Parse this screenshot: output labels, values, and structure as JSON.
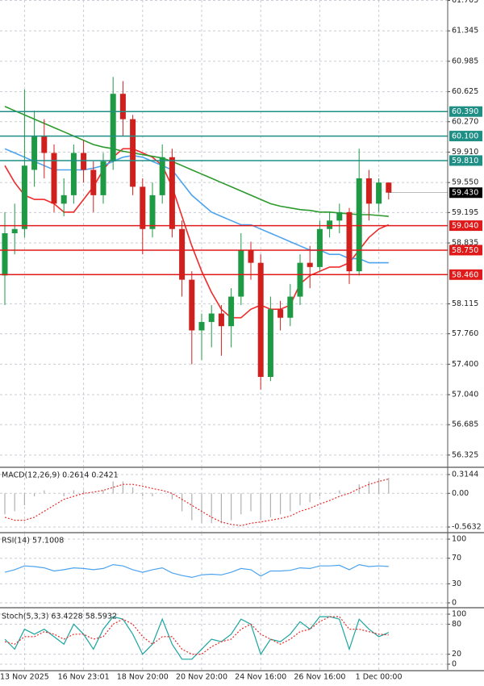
{
  "chart_data": [
    {
      "type": "candlestick",
      "grid": true,
      "categories": [
        null,
        null,
        "13 Nov 2025",
        null,
        null,
        null,
        null,
        null,
        "16 Nov 23:01",
        null,
        null,
        null,
        null,
        null,
        "18 Nov 20:00",
        null,
        null,
        null,
        null,
        null,
        "20 Nov 20:00",
        null,
        null,
        null,
        null,
        null,
        "24 Nov 16:00",
        null,
        null,
        null,
        null,
        null,
        "26 Nov 16:00",
        null,
        null,
        null,
        null,
        null,
        "1 Dec 00:00",
        null
      ],
      "open": [
        58.45,
        58.95,
        59.0,
        59.7,
        60.1,
        59.9,
        59.3,
        59.4,
        59.9,
        59.7,
        59.4,
        59.8,
        60.6,
        60.3,
        59.5,
        59.0,
        59.4,
        59.85,
        59.0,
        58.4,
        57.8,
        57.9,
        58.0,
        57.85,
        58.2,
        58.75,
        58.6,
        57.25,
        58.05,
        57.95,
        58.2,
        58.6,
        58.55,
        59.0,
        59.1,
        59.2,
        58.5,
        59.6,
        59.3,
        59.55
      ],
      "high": [
        59.2,
        59.3,
        60.65,
        60.4,
        60.3,
        60.0,
        59.6,
        60.0,
        60.05,
        59.8,
        59.9,
        60.8,
        60.75,
        60.35,
        59.6,
        59.55,
        60.0,
        59.95,
        59.1,
        58.5,
        58.0,
        58.1,
        58.1,
        58.3,
        58.95,
        58.85,
        58.7,
        58.2,
        58.15,
        58.35,
        58.7,
        58.8,
        59.1,
        59.2,
        59.3,
        59.25,
        59.95,
        59.7,
        59.6,
        59.5
      ],
      "low": [
        58.1,
        58.7,
        58.9,
        59.5,
        59.6,
        59.2,
        59.15,
        59.3,
        59.55,
        59.2,
        59.3,
        59.7,
        60.1,
        59.4,
        58.7,
        58.9,
        59.3,
        58.9,
        58.2,
        57.4,
        57.45,
        57.6,
        57.5,
        57.6,
        58.1,
        58.4,
        57.1,
        57.2,
        57.8,
        57.85,
        58.1,
        58.3,
        58.5,
        58.9,
        58.95,
        58.35,
        58.45,
        59.1,
        59.2,
        59.35
      ],
      "close": [
        58.95,
        59.0,
        59.75,
        60.1,
        59.9,
        59.3,
        59.4,
        59.9,
        59.7,
        59.4,
        59.8,
        60.6,
        60.3,
        59.5,
        59.0,
        59.4,
        59.85,
        59.0,
        58.4,
        57.8,
        57.9,
        58.0,
        57.85,
        58.2,
        58.75,
        58.6,
        57.25,
        58.05,
        57.95,
        58.2,
        58.6,
        58.55,
        59.0,
        59.1,
        59.2,
        58.5,
        59.6,
        59.3,
        59.55,
        59.43
      ],
      "up_color": "#1e9a45",
      "down_color": "#d0201e",
      "overlays": [
        {
          "color": "#ef2b2b",
          "values": [
            59.75,
            59.55,
            59.4,
            59.35,
            59.35,
            59.3,
            59.2,
            59.2,
            59.35,
            59.5,
            59.7,
            59.85,
            59.95,
            59.95,
            59.9,
            59.85,
            59.75,
            59.5,
            59.15,
            58.8,
            58.5,
            58.25,
            58.05,
            57.95,
            57.95,
            58.05,
            58.1,
            58.05,
            58.05,
            58.1,
            58.35,
            58.45,
            58.5,
            58.55,
            58.55,
            58.6,
            58.75,
            58.9,
            59.0,
            59.05
          ]
        },
        {
          "color": "#4da3ee",
          "values": [
            59.95,
            59.9,
            59.85,
            59.8,
            59.75,
            59.7,
            59.7,
            59.7,
            59.7,
            59.72,
            59.75,
            59.8,
            59.85,
            59.87,
            59.85,
            59.8,
            59.75,
            59.7,
            59.55,
            59.4,
            59.3,
            59.2,
            59.15,
            59.1,
            59.05,
            59.05,
            59.0,
            58.95,
            58.9,
            58.85,
            58.8,
            58.75,
            58.75,
            58.7,
            58.7,
            58.65,
            58.65,
            58.6,
            58.6,
            58.6
          ]
        },
        {
          "color": "#2d9a2d",
          "values": [
            60.45,
            60.4,
            60.35,
            60.3,
            60.25,
            60.2,
            60.15,
            60.1,
            60.05,
            60.0,
            59.97,
            59.95,
            59.92,
            59.9,
            59.88,
            59.86,
            59.84,
            59.8,
            59.75,
            59.7,
            59.65,
            59.6,
            59.55,
            59.5,
            59.45,
            59.4,
            59.35,
            59.3,
            59.27,
            59.25,
            59.23,
            59.22,
            59.2,
            59.2,
            59.19,
            59.18,
            59.17,
            59.17,
            59.16,
            59.15
          ]
        }
      ],
      "levels": [
        {
          "value": 60.39,
          "label": "60.390",
          "color": "#1f8f86"
        },
        {
          "value": 60.1,
          "label": "60.100",
          "color": "#1f8f86"
        },
        {
          "value": 59.81,
          "label": "59.810",
          "color": "#1f8f86"
        },
        {
          "value": 59.04,
          "label": "59.040",
          "color": "#e01a1a"
        },
        {
          "value": 58.75,
          "label": "58.750",
          "color": "#e01a1a"
        },
        {
          "value": 58.46,
          "label": "58.460",
          "color": "#e01a1a"
        }
      ],
      "last": {
        "value": 59.43,
        "label": "59.430"
      },
      "ylim": [
        56.19,
        61.71
      ],
      "yticks": [
        61.705,
        61.345,
        60.985,
        60.625,
        {
          "value": 60.27,
          "label": "60.270"
        },
        {
          "value": 59.91,
          "label": "59.910"
        },
        {
          "value": 59.55,
          "label": "59.550"
        },
        59.195,
        58.835,
        58.115,
        {
          "value": 57.76,
          "label": "57.760"
        },
        {
          "value": 57.4,
          "label": "57.400"
        },
        {
          "value": 57.04,
          "label": "57.040"
        },
        56.685,
        56.325
      ]
    },
    {
      "type": "macd",
      "title": "MACD(12,26,9) 0.2614 0.2421",
      "grid": true,
      "series": [
        {
          "type": "bar",
          "color": "#b0b0b0",
          "values": [
            -0.35,
            -0.3,
            -0.2,
            -0.05,
            0.05,
            0.0,
            -0.05,
            0.05,
            0.05,
            0.0,
            0.05,
            0.2,
            0.2,
            0.1,
            -0.05,
            -0.05,
            0.0,
            -0.1,
            -0.3,
            -0.45,
            -0.5,
            -0.5,
            -0.5,
            -0.45,
            -0.35,
            -0.3,
            -0.45,
            -0.4,
            -0.35,
            -0.3,
            -0.2,
            -0.15,
            -0.05,
            0.0,
            0.05,
            0.0,
            0.15,
            0.2,
            0.25,
            0.26
          ]
        },
        {
          "type": "dotted",
          "color": "#e52b2b",
          "values": [
            -0.4,
            -0.45,
            -0.45,
            -0.4,
            -0.3,
            -0.2,
            -0.1,
            -0.05,
            0.0,
            0.02,
            0.05,
            0.1,
            0.15,
            0.15,
            0.12,
            0.08,
            0.05,
            0.0,
            -0.1,
            -0.2,
            -0.3,
            -0.4,
            -0.48,
            -0.52,
            -0.54,
            -0.5,
            -0.48,
            -0.45,
            -0.42,
            -0.38,
            -0.3,
            -0.25,
            -0.18,
            -0.12,
            -0.05,
            0.0,
            0.08,
            0.15,
            0.2,
            0.24
          ]
        }
      ],
      "ylim": [
        -0.644,
        0.422
      ],
      "yticks": [
        0.3144,
        {
          "value": 0,
          "label": "0.00"
        },
        -0.5632
      ]
    },
    {
      "type": "rsi",
      "title": "RSI(14) 57.1008",
      "grid": true,
      "series": [
        {
          "type": "line",
          "color": "#4da3ee",
          "values": [
            48,
            52,
            58,
            57,
            55,
            50,
            52,
            55,
            54,
            52,
            54,
            60,
            58,
            52,
            48,
            52,
            55,
            47,
            43,
            40,
            44,
            45,
            44,
            48,
            54,
            52,
            42,
            50,
            50,
            51,
            55,
            54,
            58,
            58,
            59,
            52,
            60,
            57,
            58,
            57.1
          ]
        }
      ],
      "ylim": [
        -6.3,
        108.9
      ],
      "yticks": [
        100,
        70,
        30,
        0
      ]
    },
    {
      "type": "stochastic",
      "title": "Stoch(5,3,3) 63.4228 58.5932",
      "grid": true,
      "series": [
        {
          "type": "line",
          "color": "#1ba5a0",
          "values": [
            50,
            30,
            70,
            60,
            70,
            55,
            40,
            80,
            60,
            30,
            70,
            95,
            90,
            60,
            20,
            40,
            90,
            40,
            10,
            10,
            30,
            50,
            45,
            60,
            90,
            80,
            20,
            50,
            45,
            60,
            85,
            70,
            95,
            95,
            90,
            30,
            90,
            70,
            55,
            63.4
          ]
        },
        {
          "type": "dotted",
          "color": "#e52b2b",
          "values": [
            45,
            40,
            55,
            55,
            65,
            60,
            50,
            60,
            60,
            50,
            55,
            80,
            90,
            80,
            55,
            40,
            55,
            55,
            30,
            20,
            20,
            35,
            45,
            50,
            70,
            80,
            60,
            50,
            40,
            50,
            65,
            70,
            85,
            95,
            95,
            70,
            70,
            65,
            60,
            58.6
          ]
        }
      ],
      "ylim": [
        -11.3,
        109.7
      ],
      "yticks": [
        100,
        80,
        20,
        0
      ]
    }
  ]
}
